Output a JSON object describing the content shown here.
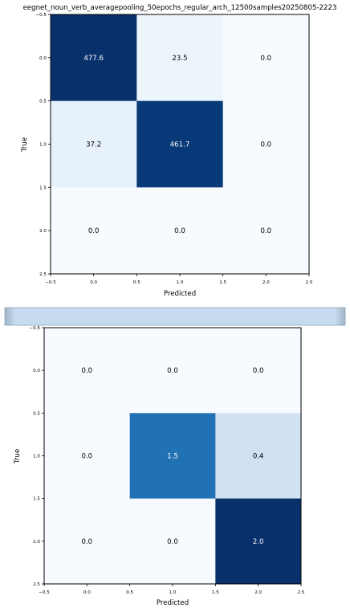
{
  "chart_data": [
    {
      "type": "heatmap",
      "title": "eegnet_noun_verb_averagepooling_50epochs_regular_arch_12500samples20250805-2223",
      "xlabel": "Predicted",
      "ylabel": "True",
      "xlim": [
        -0.5,
        2.5
      ],
      "ylim": [
        2.5,
        -0.5
      ],
      "x_ticks": [
        "−0.5",
        "0.0",
        "0.5",
        "1.0",
        "1.5",
        "2.0",
        "2.5"
      ],
      "y_ticks": [
        "−0.5",
        "0.0",
        "0.5",
        "1.0",
        "1.5",
        "2.0",
        "2.5"
      ],
      "vmax": 477.6,
      "colormap": "Blues",
      "grid": false,
      "values": [
        [
          477.6,
          23.5,
          0.0
        ],
        [
          37.2,
          461.7,
          0.0
        ],
        [
          0.0,
          0.0,
          0.0
        ]
      ]
    },
    {
      "type": "heatmap",
      "title": "",
      "xlabel": "Predicted",
      "ylabel": "True",
      "xlim": [
        -0.5,
        2.5
      ],
      "ylim": [
        2.5,
        -0.5
      ],
      "x_ticks": [
        "−0.5",
        "0.0",
        "0.5",
        "1.0",
        "1.5",
        "2.0",
        "2.5"
      ],
      "y_ticks": [
        "−0.5",
        "0.0",
        "0.5",
        "1.0",
        "1.5",
        "2.0",
        "2.5"
      ],
      "vmax": 2.0,
      "colormap": "Blues",
      "grid": false,
      "values": [
        [
          0.0,
          0.0,
          0.0
        ],
        [
          0.0,
          1.5,
          0.4
        ],
        [
          0.0,
          0.0,
          2.0
        ]
      ]
    }
  ],
  "colors": {
    "blues_low": "#f7fbff",
    "blues_high": "#08306b",
    "divider": "#c6dbef"
  }
}
